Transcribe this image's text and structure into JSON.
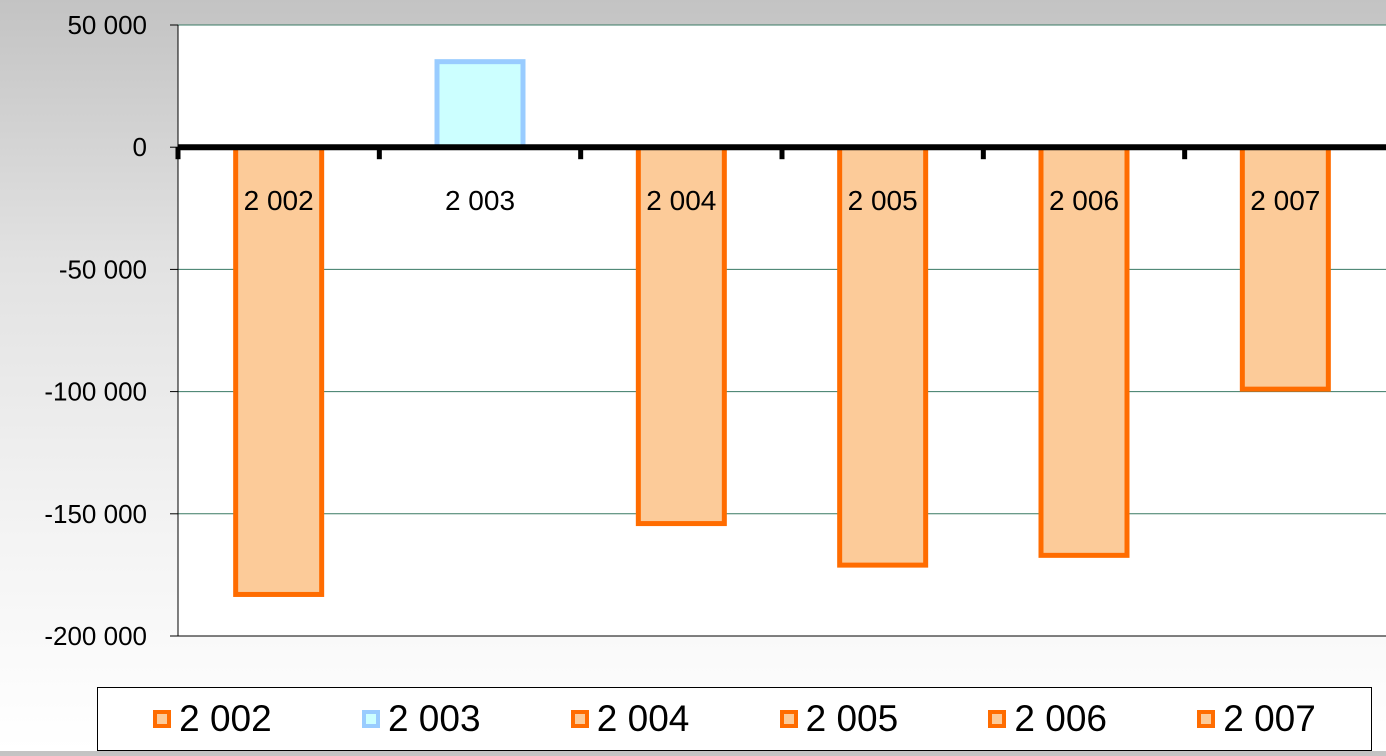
{
  "chart_data": {
    "type": "bar",
    "categories": [
      "2 002",
      "2 003",
      "2 004",
      "2 005",
      "2 006",
      "2 007"
    ],
    "values": [
      -183000,
      35000,
      -154000,
      -171000,
      -167000,
      -99000
    ],
    "title": "",
    "xlabel": "",
    "ylabel": "",
    "ylim": [
      -200000,
      50000
    ],
    "yticks": [
      50000,
      0,
      -50000,
      -100000,
      -150000,
      -200000
    ],
    "ytick_labels": [
      "50 000",
      "0",
      "-50 000",
      "-100 000",
      "-150 000",
      "-200 000"
    ],
    "grid": true,
    "legend_position": "bottom",
    "legend": [
      "2 002",
      "2 003",
      "2 004",
      "2 005",
      "2 006",
      "2 007"
    ],
    "colors": {
      "negative_fill": "#fccb99",
      "negative_stroke": "#ff6c00",
      "positive_fill": "#ccffff",
      "positive_stroke": "#99ccff",
      "gridline": "#3a7a64",
      "zero_axis": "#000000"
    }
  }
}
